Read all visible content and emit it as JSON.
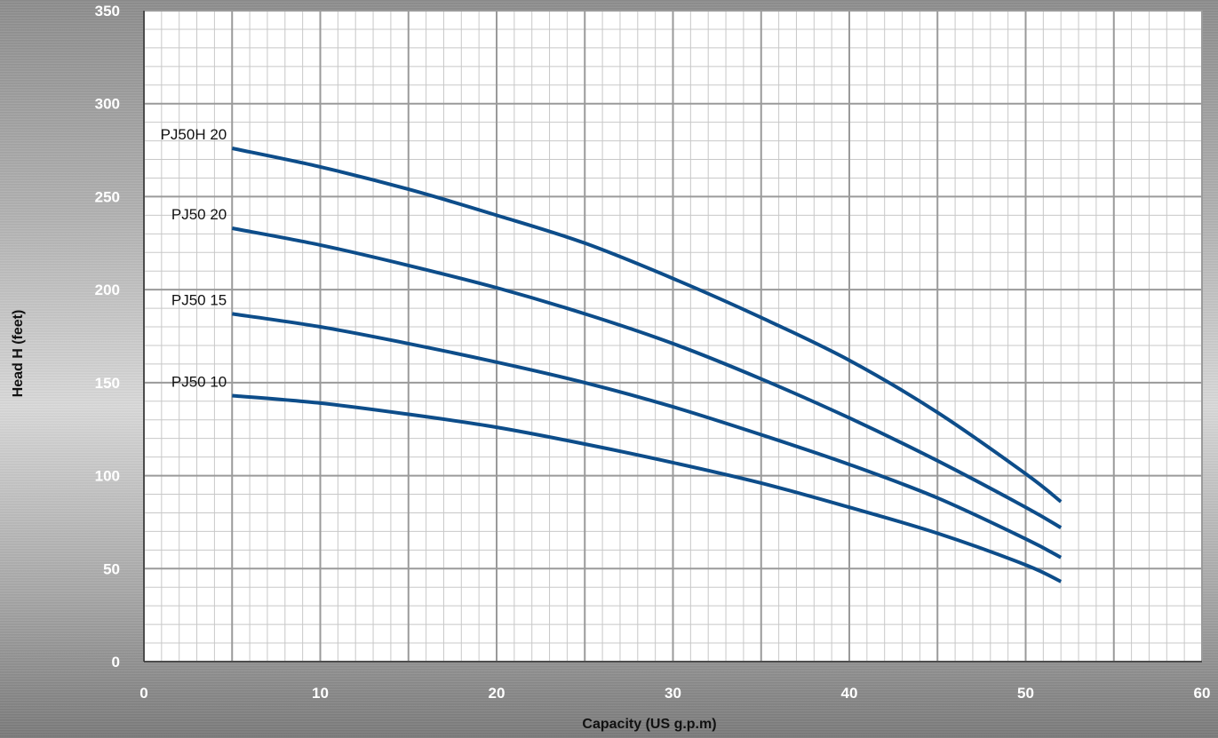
{
  "chart_data": {
    "type": "line",
    "title": "",
    "xlabel": "Capacity (US g.p.m)",
    "ylabel": "Head H (feet)",
    "xlim": [
      0,
      60
    ],
    "ylim": [
      0,
      350
    ],
    "x_ticks": [
      "0",
      "10",
      "20",
      "30",
      "40",
      "50",
      "60"
    ],
    "y_ticks": [
      "0",
      "50",
      "100",
      "150",
      "200",
      "250",
      "300",
      "350"
    ],
    "grid": true,
    "line_color": "#0d4d8a",
    "series": [
      {
        "name": "PJ50H  20",
        "x": [
          5,
          10,
          15,
          20,
          25,
          30,
          35,
          40,
          45,
          50,
          52
        ],
        "y": [
          276,
          266,
          254,
          240,
          225,
          206,
          185,
          162,
          134,
          101,
          86
        ]
      },
      {
        "name": "PJ50  20",
        "x": [
          5,
          10,
          15,
          20,
          25,
          30,
          35,
          40,
          45,
          50,
          52
        ],
        "y": [
          233,
          224,
          213,
          201,
          187,
          171,
          152,
          131,
          108,
          83,
          72
        ]
      },
      {
        "name": "PJ50  15",
        "x": [
          5,
          10,
          15,
          20,
          25,
          30,
          35,
          40,
          45,
          50,
          52
        ],
        "y": [
          187,
          180,
          171,
          161,
          150,
          137,
          122,
          106,
          88,
          66,
          56
        ]
      },
      {
        "name": "PJ50  10",
        "x": [
          5,
          10,
          15,
          20,
          25,
          30,
          35,
          40,
          45,
          50,
          52
        ],
        "y": [
          143,
          139,
          133,
          126,
          117,
          107,
          96,
          83,
          69,
          52,
          43
        ]
      }
    ]
  }
}
